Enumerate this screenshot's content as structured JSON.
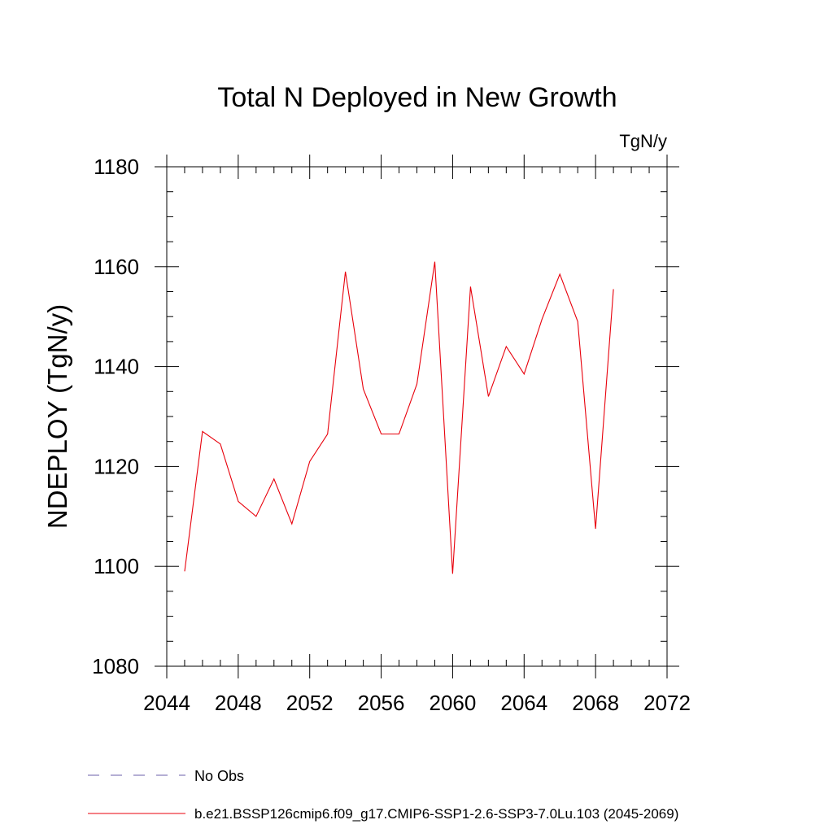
{
  "chart_data": {
    "type": "line",
    "title": "Total N Deployed in New Growth",
    "units_label": "TgN/y",
    "ylabel": "NDEPLOY  (TgN/y)",
    "xlabel": "",
    "xlim": [
      2044,
      2072
    ],
    "ylim": [
      1080,
      1180
    ],
    "x_ticks": [
      2044,
      2048,
      2052,
      2056,
      2060,
      2064,
      2068,
      2072
    ],
    "y_ticks": [
      1080,
      1100,
      1120,
      1140,
      1160,
      1180
    ],
    "x_minor_step": 1,
    "y_minor_step": 5,
    "grid": false,
    "series": [
      {
        "name": "b.e21.BSSP126cmip6.f09_g17.CMIP6-SSP1-2.6-SSP3-7.0Lu.103 (2045-2069)",
        "color": "#e8000b",
        "x": [
          2045,
          2046,
          2047,
          2048,
          2049,
          2050,
          2051,
          2052,
          2053,
          2054,
          2055,
          2056,
          2057,
          2058,
          2059,
          2060,
          2061,
          2062,
          2063,
          2064,
          2065,
          2066,
          2067,
          2068,
          2069
        ],
        "y": [
          1099,
          1127,
          1124.5,
          1113,
          1110,
          1117.5,
          1108.5,
          1121,
          1126.5,
          1159,
          1135.5,
          1126.5,
          1126.5,
          1136.5,
          1161,
          1098.5,
          1156,
          1134,
          1144,
          1138.5,
          1149.5,
          1158.5,
          1149,
          1107.5,
          1155.5
        ]
      }
    ],
    "legend": {
      "placement": "bottom-left",
      "entries": [
        {
          "label": "No Obs",
          "style": "dashed",
          "color": "#6b5fa8"
        },
        {
          "label": "b.e21.BSSP126cmip6.f09_g17.CMIP6-SSP1-2.6-SSP3-7.0Lu.103 (2045-2069)",
          "style": "solid",
          "color": "#e8000b"
        }
      ]
    }
  }
}
